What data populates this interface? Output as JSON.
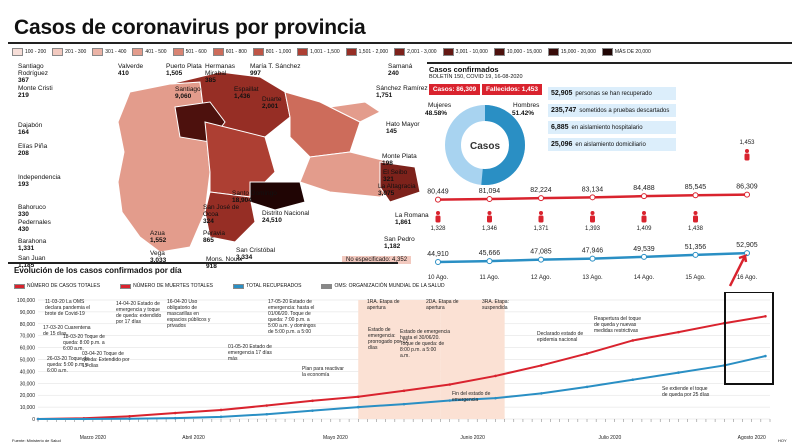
{
  "title": "Casos de coronavirus por provincia",
  "map_legend": [
    {
      "label": "100 - 200",
      "color": "#f7ded8"
    },
    {
      "label": "201 - 300",
      "color": "#f2c9bf"
    },
    {
      "label": "301 - 400",
      "color": "#ebb3a6"
    },
    {
      "label": "401 - 500",
      "color": "#e39c8c"
    },
    {
      "label": "501 - 600",
      "color": "#d98473"
    },
    {
      "label": "601 - 800",
      "color": "#cd6c5b"
    },
    {
      "label": "801 - 1,000",
      "color": "#bf5546"
    },
    {
      "label": "1,001 - 1,500",
      "color": "#ad3f33"
    },
    {
      "label": "1,501 - 2,000",
      "color": "#962e25"
    },
    {
      "label": "2,001 - 3,000",
      "color": "#7d221b"
    },
    {
      "label": "3,001 - 10,000",
      "color": "#641813"
    },
    {
      "label": "10,000 - 15,000",
      "color": "#4d110d"
    },
    {
      "label": "15,000 - 20,000",
      "color": "#380b09"
    },
    {
      "label": "MÁS DE 20,000",
      "color": "#200504"
    }
  ],
  "provinces": [
    {
      "name": "Santiago Rodríguez",
      "value": "367"
    },
    {
      "name": "Monte Cristi",
      "value": "219"
    },
    {
      "name": "Dajabón",
      "value": "164"
    },
    {
      "name": "Elías Piña",
      "value": "208"
    },
    {
      "name": "Independencia",
      "value": "193"
    },
    {
      "name": "Bahoruco",
      "value": "330"
    },
    {
      "name": "Pedernales",
      "value": "430"
    },
    {
      "name": "Barahona",
      "value": "1,331"
    },
    {
      "name": "San Juan",
      "value": "1,185"
    },
    {
      "name": "Valverde",
      "value": "410"
    },
    {
      "name": "Puerto Plata",
      "value": "1,505"
    },
    {
      "name": "Santiago",
      "value": "9,060"
    },
    {
      "name": "Hermanas Mirabal",
      "value": "385"
    },
    {
      "name": "Espaillat",
      "value": "1,436"
    },
    {
      "name": "María T. Sánchez",
      "value": "997"
    },
    {
      "name": "Duarte",
      "value": "2,001"
    },
    {
      "name": "Samaná",
      "value": "240"
    },
    {
      "name": "Sánchez Ramírez",
      "value": "1,751"
    },
    {
      "name": "Hato Mayor",
      "value": "145"
    },
    {
      "name": "Monte Plata",
      "value": "198"
    },
    {
      "name": "El Seibo",
      "value": "321"
    },
    {
      "name": "La Altagracia",
      "value": "3,075"
    },
    {
      "name": "La Romana",
      "value": "1,861"
    },
    {
      "name": "San Pedro",
      "value": "1,182"
    },
    {
      "name": "Azua",
      "value": "1,552"
    },
    {
      "name": "Vega",
      "value": "3,033"
    },
    {
      "name": "San José de Ocoa",
      "value": "324"
    },
    {
      "name": "Peravia",
      "value": "865"
    },
    {
      "name": "Mons. Nouel",
      "value": "918"
    },
    {
      "name": "Santo Domingo",
      "value": "18,904"
    },
    {
      "name": "Distrito Nacional",
      "value": "24,510"
    },
    {
      "name": "San Cristóbal",
      "value": "3,334"
    }
  ],
  "unspecified": "No especificado: 4,352",
  "cases_box": {
    "header": "Casos confirmados",
    "subheader": "BOLETÍN 150, COVID 19, 16-08-2020",
    "cases_label": "Casos: 86,309",
    "deaths_label": "Fallecidos: 1,453",
    "donut_label": "Casos",
    "women_label": "Mujeres",
    "women_pct": "48.58%",
    "men_label": "Hombres",
    "men_pct": "51.42%",
    "women_value": 48.58,
    "men_value": 51.42
  },
  "stats": [
    {
      "value": "52,905",
      "text": "personas se han recuperado"
    },
    {
      "value": "235,747",
      "text": "sometidos a pruebas descartados"
    },
    {
      "value": "6,885",
      "text": "en aislamiento hospitalario"
    },
    {
      "value": "25,096",
      "text": "en aislamiento domiciliario"
    }
  ],
  "section_title": "Evolución de los casos confirmados por día",
  "chart_legend": [
    {
      "label": "NÚMERO DE CASOS TOTALES",
      "color": "#d9232e"
    },
    {
      "label": "NÚMERO DE MUERTES TOTALES",
      "color": "#d9232e"
    },
    {
      "label": "TOTAL RECUPERADOS",
      "color": "#2a8fc4"
    },
    {
      "label": "OMS: ORGANIZACIÓN MUNDIAL DE LA SALUD",
      "color": "#888888"
    }
  ],
  "source": "Fuente: Ministerio de Salud",
  "credit": "HOY",
  "chart_data": [
    {
      "type": "line",
      "categories": [
        "10 Ago.",
        "11 Ago.",
        "12 Ago.",
        "13 Ago.",
        "14 Ago.",
        "15 Ago.",
        "16 Ago."
      ],
      "series": [
        {
          "name": "Casos",
          "values": [
            80449,
            81094,
            82224,
            83134,
            84488,
            85545,
            86309
          ]
        },
        {
          "name": "Muertes",
          "values": [
            1328,
            1346,
            1371,
            1393,
            1409,
            1438,
            1453
          ]
        },
        {
          "name": "Recuperados",
          "values": [
            44910,
            45666,
            47085,
            47946,
            49539,
            51356,
            52905
          ]
        }
      ]
    },
    {
      "type": "line",
      "title": "Evolución de los casos confirmados por día",
      "ylim": [
        0,
        100000
      ],
      "yticks": [
        "0",
        "10,000",
        "20,000",
        "30,000",
        "40,000",
        "50,000",
        "60,000",
        "70,000",
        "80,000",
        "90,000",
        "100,000"
      ],
      "months": [
        "Marzo 2020",
        "Abril 2020",
        "Mayo 2020",
        "Junio 2020",
        "Julio 2020",
        "Agosto 2020"
      ],
      "x": [
        0,
        10,
        20,
        30,
        40,
        50,
        60,
        70,
        80,
        90,
        100,
        110,
        120,
        130,
        140,
        150,
        159
      ],
      "series": [
        {
          "name": "Casos totales",
          "values": [
            5,
            600,
            2300,
            5000,
            7600,
            11300,
            15300,
            18700,
            23700,
            29000,
            36200,
            45000,
            55000,
            66000,
            73000,
            80500,
            86300
          ]
        },
        {
          "name": "Recuperados",
          "values": [
            0,
            5,
            200,
            700,
            1800,
            4000,
            7000,
            10000,
            12500,
            15500,
            17500,
            21500,
            27000,
            33000,
            39000,
            45000,
            52900
          ]
        }
      ]
    }
  ],
  "annotations": [
    "11-03-20 La OMS declara pandemia el brote de Covid-19",
    "17-03-20 Cuarentena de 15 días",
    "18-03-20 Toque de queda: 8:00 p.m. a 6:00 a.m.",
    "26-03-20 Toque de queda: 5:00 p.m. a 6:00 a.m.",
    "03-04-20 Toque de queda: Extendido por 15 días",
    "14-04-20 Estado de emergencia y toque de queda: extendido por 17 días",
    "16-04-20 Uso obligatorio de mascarillas en espacios públicos y privados",
    "01-05-20 Estado de emergencia 17 días más",
    "17-05-20 Estado de emergencia: hasta el 01/06/20. Toque de queda: 7:00 p.m. a 5:00 a.m. y domingos de 5:00 p.m. a 5:00 a.m.",
    "Plan para reactivar la economía",
    "1RA. Etapa de apertura",
    "Estado de emergencia: prorrogado por 12 días",
    "2DA. Etapa de apertura",
    "Estado de emergencia hasta el 30/06/20. Toque de queda: de 8:00 p.m. a 5:00 a.m.",
    "Fin del estado de emergencia",
    "3RA. Etapa: suspendida",
    "Declarado estado de epidemia nacional",
    "Reapertura del toque de queda y nuevas medidas restrictivas",
    "Se extiende el toque de queda por 25 días"
  ]
}
